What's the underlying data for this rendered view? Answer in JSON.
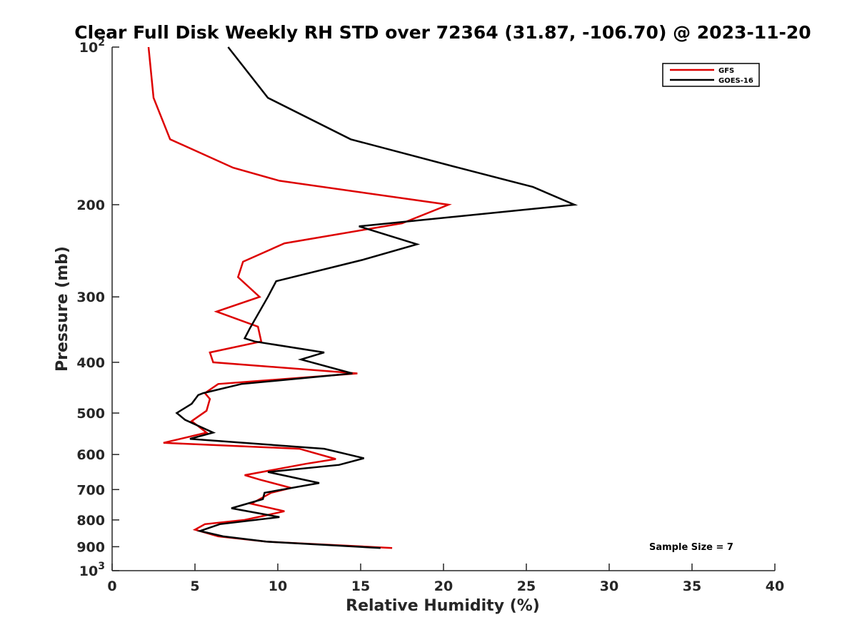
{
  "chart_data": {
    "type": "line",
    "title": "Clear Full Disk Weekly RH STD over 72364 (31.87, -106.70) @ 2023-11-20",
    "xlabel": "Relative Humidity (%)",
    "ylabel": "Pressure (mb)",
    "xlim": [
      0,
      40
    ],
    "ylim": [
      1000,
      100
    ],
    "yscale": "log",
    "grid": false,
    "legend_position": "top-right",
    "x_ticks": [
      "0",
      "5",
      "10",
      "15",
      "20",
      "25",
      "30",
      "35",
      "40"
    ],
    "y_ticks": [
      {
        "value": 100,
        "base": "10",
        "exp": "2"
      },
      {
        "value": 200,
        "label": "200"
      },
      {
        "value": 300,
        "label": "300"
      },
      {
        "value": 400,
        "label": "400"
      },
      {
        "value": 500,
        "label": "500"
      },
      {
        "value": 600,
        "label": "600"
      },
      {
        "value": 700,
        "label": "700"
      },
      {
        "value": 800,
        "label": "800"
      },
      {
        "value": 900,
        "label": "900"
      },
      {
        "value": 1000,
        "base": "10",
        "exp": "3"
      }
    ],
    "annotation": "Sample Size = 7",
    "series": [
      {
        "name": "GFS",
        "color": "#dd0000",
        "points": [
          [
            2.2,
            100
          ],
          [
            2.5,
            125
          ],
          [
            3.5,
            150
          ],
          [
            7.3,
            170
          ],
          [
            10.1,
            180
          ],
          [
            20.3,
            200
          ],
          [
            17.5,
            217
          ],
          [
            10.4,
            237
          ],
          [
            7.9,
            257
          ],
          [
            7.6,
            275
          ],
          [
            8.9,
            300
          ],
          [
            6.3,
            320
          ],
          [
            8.8,
            342
          ],
          [
            9.0,
            365
          ],
          [
            5.9,
            383
          ],
          [
            6.1,
            400
          ],
          [
            14.8,
            420
          ],
          [
            6.4,
            440
          ],
          [
            5.6,
            458
          ],
          [
            5.9,
            470
          ],
          [
            5.7,
            495
          ],
          [
            4.8,
            518
          ],
          [
            5.7,
            545
          ],
          [
            3.1,
            570
          ],
          [
            11.3,
            585
          ],
          [
            13.5,
            612
          ],
          [
            11.7,
            625
          ],
          [
            8.0,
            657
          ],
          [
            8.9,
            670
          ],
          [
            10.8,
            695
          ],
          [
            9.6,
            710
          ],
          [
            8.4,
            745
          ],
          [
            10.4,
            770
          ],
          [
            8.8,
            790
          ],
          [
            8.0,
            800
          ],
          [
            5.6,
            815
          ],
          [
            5.0,
            835
          ],
          [
            6.4,
            860
          ],
          [
            9.3,
            880
          ],
          [
            16.9,
            905
          ]
        ]
      },
      {
        "name": "GOES-16",
        "color": "#000000",
        "points": [
          [
            7.0,
            100
          ],
          [
            9.4,
            125
          ],
          [
            14.4,
            150
          ],
          [
            20.9,
            170
          ],
          [
            25.4,
            185
          ],
          [
            27.9,
            200
          ],
          [
            14.9,
            220
          ],
          [
            18.4,
            238
          ],
          [
            15.1,
            255
          ],
          [
            9.9,
            280
          ],
          [
            9.4,
            300
          ],
          [
            8.3,
            345
          ],
          [
            8.0,
            360
          ],
          [
            8.6,
            365
          ],
          [
            12.8,
            383
          ],
          [
            11.4,
            395
          ],
          [
            14.5,
            420
          ],
          [
            7.8,
            440
          ],
          [
            5.5,
            458
          ],
          [
            5.2,
            462
          ],
          [
            4.8,
            480
          ],
          [
            3.9,
            500
          ],
          [
            4.4,
            515
          ],
          [
            6.1,
            545
          ],
          [
            4.7,
            560
          ],
          [
            12.8,
            585
          ],
          [
            15.2,
            610
          ],
          [
            13.7,
            628
          ],
          [
            9.4,
            648
          ],
          [
            12.5,
            680
          ],
          [
            9.2,
            710
          ],
          [
            9.1,
            730
          ],
          [
            7.2,
            760
          ],
          [
            10.1,
            790
          ],
          [
            6.5,
            815
          ],
          [
            5.3,
            840
          ],
          [
            6.7,
            860
          ],
          [
            9.3,
            880
          ],
          [
            16.2,
            905
          ]
        ]
      }
    ]
  }
}
